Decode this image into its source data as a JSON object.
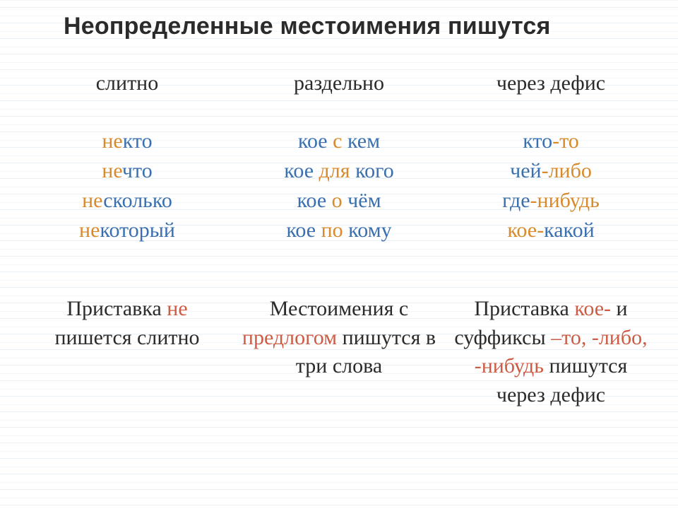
{
  "title": "Неопределенные местоимения пишутся",
  "columns": [
    {
      "header": "слитно",
      "examples": [
        {
          "parts": [
            {
              "t": "не",
              "c": "or"
            },
            {
              "t": "кто",
              "c": "bl"
            }
          ]
        },
        {
          "parts": [
            {
              "t": "не",
              "c": "or"
            },
            {
              "t": "что",
              "c": "bl"
            }
          ]
        },
        {
          "parts": [
            {
              "t": "не",
              "c": "or"
            },
            {
              "t": "сколько",
              "c": "bl"
            }
          ]
        },
        {
          "parts": [
            {
              "t": "не",
              "c": "or"
            },
            {
              "t": "который",
              "c": "bl"
            }
          ]
        }
      ],
      "rule": [
        {
          "t": "Приставка ",
          "c": ""
        },
        {
          "t": "не",
          "c": "rd"
        },
        {
          "t": " пишется слитно",
          "c": ""
        }
      ]
    },
    {
      "header": "раздельно",
      "examples": [
        {
          "parts": [
            {
              "t": "кое ",
              "c": "bl"
            },
            {
              "t": "с",
              "c": "or"
            },
            {
              "t": " кем",
              "c": "bl"
            }
          ]
        },
        {
          "parts": [
            {
              "t": "кое ",
              "c": "bl"
            },
            {
              "t": "для",
              "c": "or"
            },
            {
              "t": " кого",
              "c": "bl"
            }
          ]
        },
        {
          "parts": [
            {
              "t": "кое ",
              "c": "bl"
            },
            {
              "t": "о",
              "c": "or"
            },
            {
              "t": " чём",
              "c": "bl"
            }
          ]
        },
        {
          "parts": [
            {
              "t": "кое ",
              "c": "bl"
            },
            {
              "t": "по",
              "c": "or"
            },
            {
              "t": " кому",
              "c": "bl"
            }
          ]
        }
      ],
      "rule": [
        {
          "t": "Местоимения с ",
          "c": ""
        },
        {
          "t": "предлогом",
          "c": "rd"
        },
        {
          "t": " пишутся в три слова",
          "c": ""
        }
      ]
    },
    {
      "header": "через дефис",
      "examples": [
        {
          "parts": [
            {
              "t": "кто",
              "c": "bl"
            },
            {
              "t": "-то",
              "c": "or"
            }
          ]
        },
        {
          "parts": [
            {
              "t": "чей",
              "c": "bl"
            },
            {
              "t": "-либо",
              "c": "or"
            }
          ]
        },
        {
          "parts": [
            {
              "t": "где",
              "c": "bl"
            },
            {
              "t": "-нибудь",
              "c": "or"
            }
          ]
        },
        {
          "parts": [
            {
              "t": "кое-",
              "c": "or"
            },
            {
              "t": "какой",
              "c": "bl"
            }
          ]
        }
      ],
      "rule": [
        {
          "t": "Приставка ",
          "c": ""
        },
        {
          "t": "кое-",
          "c": "rd"
        },
        {
          "t": " и суффиксы ",
          "c": ""
        },
        {
          "t": "–то, -либо, -нибудь",
          "c": "rd"
        },
        {
          "t": " пишутся через дефис",
          "c": ""
        }
      ]
    }
  ]
}
